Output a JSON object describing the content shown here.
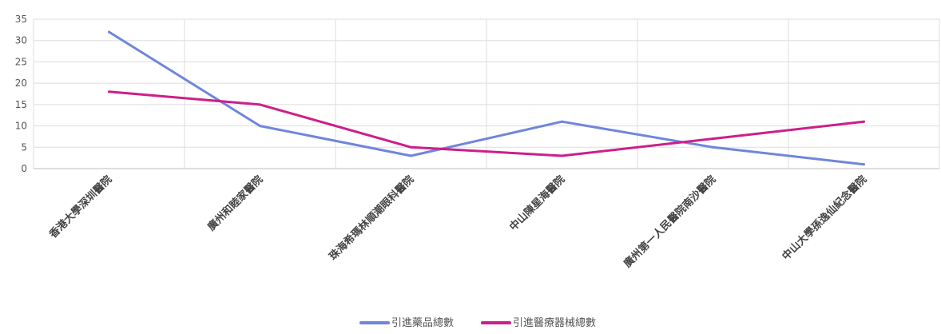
{
  "chart_data": {
    "type": "line",
    "title": "",
    "xlabel": "",
    "ylabel": "",
    "categories": [
      "香港大學深圳醫院",
      "廣州和睦家醫院",
      "珠海希瑪林順潮眼科醫院",
      "中山陳星海醫院",
      "廣州第一人民醫院南沙醫院",
      "中山大學孫逸仙紀念醫院"
    ],
    "series": [
      {
        "name": "引進藥品總數",
        "color": "#6f86dc",
        "values": [
          32,
          10,
          3,
          11,
          5,
          1
        ]
      },
      {
        "name": "引進醫療器械總數",
        "color": "#cc1f8a",
        "values": [
          18,
          15,
          5,
          3,
          7,
          11
        ]
      }
    ],
    "ylim": [
      0,
      35
    ],
    "yticks": [
      0,
      5,
      10,
      15,
      20,
      25,
      30,
      35
    ],
    "grid": true,
    "legend_position": "bottom"
  }
}
